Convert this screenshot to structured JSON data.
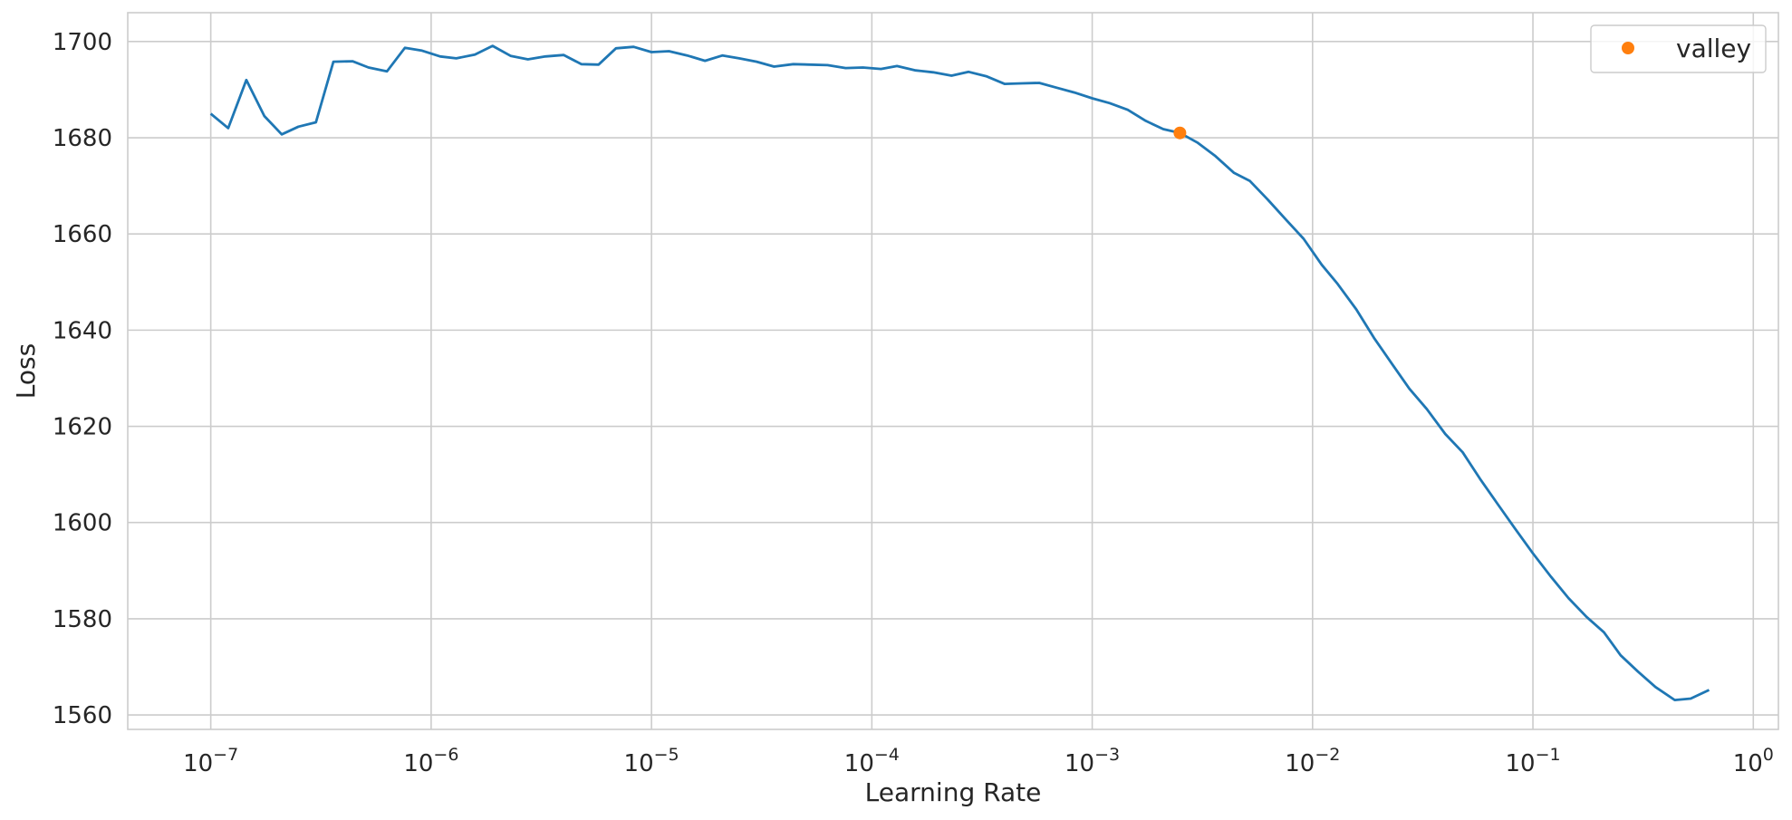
{
  "chart_data": {
    "type": "line",
    "xlabel": "Learning Rate",
    "ylabel": "Loss",
    "xscale": "log",
    "xlim": [
      4.2e-08,
      1.3
    ],
    "ylim": [
      1557,
      1706
    ],
    "grid": true,
    "legend_position": "top-right",
    "x_ticks": [
      {
        "value": 1e-07,
        "base": "10",
        "exp": "−7"
      },
      {
        "value": 1e-06,
        "base": "10",
        "exp": "−6"
      },
      {
        "value": 1e-05,
        "base": "10",
        "exp": "−5"
      },
      {
        "value": 0.0001,
        "base": "10",
        "exp": "−4"
      },
      {
        "value": 0.001,
        "base": "10",
        "exp": "−3"
      },
      {
        "value": 0.01,
        "base": "10",
        "exp": "−2"
      },
      {
        "value": 0.1,
        "base": "10",
        "exp": "−1"
      },
      {
        "value": 1,
        "base": "10",
        "exp": "0"
      }
    ],
    "y_ticks": [
      1560,
      1580,
      1600,
      1620,
      1640,
      1660,
      1680,
      1700
    ],
    "series": [
      {
        "color": "#1f77b4",
        "x": [
          1e-07,
          1.2e-07,
          1.45e-07,
          1.75e-07,
          2.1e-07,
          2.5e-07,
          3e-07,
          3.6e-07,
          4.4e-07,
          5.2e-07,
          6.3e-07,
          7.6e-07,
          9.1e-07,
          1.1e-06,
          1.3e-06,
          1.58e-06,
          1.9e-06,
          2.3e-06,
          2.75e-06,
          3.3e-06,
          4e-06,
          4.8e-06,
          5.75e-06,
          6.9e-06,
          8.3e-06,
          1e-05,
          1.2e-05,
          1.45e-05,
          1.75e-05,
          2.1e-05,
          2.5e-05,
          3e-05,
          3.6e-05,
          4.4e-05,
          5.2e-05,
          6.3e-05,
          7.6e-05,
          9.1e-05,
          0.00011,
          0.00013,
          0.000158,
          0.00019,
          0.00023,
          0.000275,
          0.00033,
          0.0004,
          0.00048,
          0.000575,
          0.00069,
          0.00083,
          0.001,
          0.0012,
          0.00145,
          0.00175,
          0.0021,
          0.0025,
          0.003,
          0.0036,
          0.0044,
          0.0052,
          0.0063,
          0.0076,
          0.0091,
          0.011,
          0.013,
          0.0158,
          0.019,
          0.023,
          0.0275,
          0.033,
          0.04,
          0.048,
          0.0575,
          0.069,
          0.083,
          0.1,
          0.12,
          0.145,
          0.175,
          0.21,
          0.25,
          0.3,
          0.36,
          0.44,
          0.52,
          0.63
        ],
        "y": [
          1685,
          1682,
          1692,
          1684.5,
          1680.7,
          1682.3,
          1683.2,
          1695.8,
          1695.9,
          1694.6,
          1693.8,
          1698.7,
          1698.1,
          1696.9,
          1696.5,
          1697.3,
          1699.1,
          1697.0,
          1696.3,
          1696.9,
          1697.2,
          1695.3,
          1695.2,
          1698.6,
          1698.9,
          1697.8,
          1698.0,
          1697.1,
          1696.0,
          1697.1,
          1696.5,
          1695.8,
          1694.8,
          1695.3,
          1695.2,
          1695.1,
          1694.5,
          1694.6,
          1694.3,
          1694.9,
          1694.0,
          1693.6,
          1692.9,
          1693.7,
          1692.8,
          1691.2,
          1691.3,
          1691.4,
          1690.4,
          1689.4,
          1688.2,
          1687.2,
          1685.8,
          1683.5,
          1681.8,
          1681.0,
          1679.0,
          1676.3,
          1672.7,
          1671.0,
          1667.0,
          1662.9,
          1659.0,
          1653.6,
          1649.6,
          1644.3,
          1638.4,
          1632.9,
          1627.8,
          1623.6,
          1618.4,
          1614.6,
          1609.1,
          1603.9,
          1598.7,
          1593.6,
          1588.9,
          1584.3,
          1580.4,
          1577.2,
          1572.4,
          1569.0,
          1565.8,
          1563.1,
          1563.4,
          1565.2
        ]
      }
    ],
    "points": [
      {
        "name": "valley",
        "x": 0.0025,
        "y": 1681.0,
        "color": "#ff7f0e"
      }
    ]
  }
}
